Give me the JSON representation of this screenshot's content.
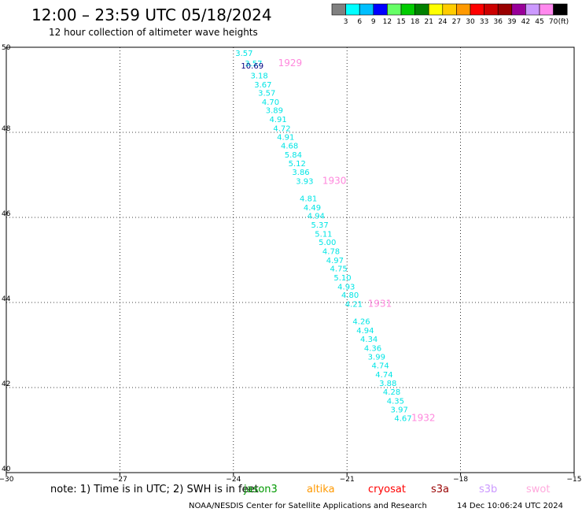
{
  "title": "12:00 – 23:59 UTC 05/18/2024",
  "subtitle": "12 hour collection of altimeter wave heights",
  "colorbar": {
    "labels": [
      "3",
      "6",
      "9",
      "12",
      "15",
      "18",
      "21",
      "24",
      "27",
      "30",
      "33",
      "36",
      "39",
      "42",
      "45",
      "70"
    ],
    "unit": "(ft)",
    "colors": [
      "#808080",
      "#00ffff",
      "#00bfff",
      "#0000ff",
      "#66ff66",
      "#00cc00",
      "#008000",
      "#ffff00",
      "#ffcc00",
      "#ff9900",
      "#ff0000",
      "#cc0000",
      "#990000",
      "#990099",
      "#cc99ff",
      "#ff88ee",
      "#000000"
    ]
  },
  "footer": {
    "note": "note:  1) Time is in UTC; 2) SWH is in feet",
    "satellites": [
      {
        "name": "jason3",
        "color": "#009900"
      },
      {
        "name": "altika",
        "color": "#ff9900"
      },
      {
        "name": "cryosat",
        "color": "#ff0000"
      },
      {
        "name": "s3a",
        "color": "#990000"
      },
      {
        "name": "s3b",
        "color": "#cc99ff"
      },
      {
        "name": "swot",
        "color": "#ffaadd"
      }
    ],
    "credit": "NOAA/NESDIS Center for Satellite Applications and Research",
    "timestamp": "14 Dec 10:06:24 UTC 2024"
  },
  "chart_data": {
    "type": "scatter",
    "xlim": [
      -30,
      -15
    ],
    "ylim": [
      40,
      50
    ],
    "xticks": [
      "−30",
      "−27",
      "−24",
      "−21",
      "−18",
      "−15"
    ],
    "xtick_values": [
      -30,
      -27,
      -24,
      -21,
      -18,
      -15
    ],
    "yticks": [
      "40",
      "42",
      "44",
      "46",
      "48",
      "50"
    ],
    "ytick_values": [
      40,
      42,
      44,
      46,
      48,
      50
    ],
    "grid": true,
    "points": [
      {
        "lon": -23.95,
        "lat": 49.8,
        "label": "3.57",
        "color": "#00e5e5"
      },
      {
        "lon": -23.7,
        "lat": 49.56,
        "label": "3.57",
        "color": "#00e5e5"
      },
      {
        "lon": -23.8,
        "lat": 49.5,
        "label": "10.69",
        "color": "#000080"
      },
      {
        "lon": -23.55,
        "lat": 49.27,
        "label": "3.18",
        "color": "#00e5e5"
      },
      {
        "lon": -23.45,
        "lat": 49.06,
        "label": "3.67",
        "color": "#00e5e5"
      },
      {
        "lon": -23.35,
        "lat": 48.86,
        "label": "3.57",
        "color": "#00e5e5"
      },
      {
        "lon": -23.25,
        "lat": 48.65,
        "label": "4.70",
        "color": "#00e5e5"
      },
      {
        "lon": -23.15,
        "lat": 48.45,
        "label": "3.89",
        "color": "#00e5e5"
      },
      {
        "lon": -23.05,
        "lat": 48.24,
        "label": "4.91",
        "color": "#00e5e5"
      },
      {
        "lon": -22.95,
        "lat": 48.03,
        "label": "4.72",
        "color": "#00e5e5"
      },
      {
        "lon": -22.85,
        "lat": 47.82,
        "label": "4.91",
        "color": "#00e5e5"
      },
      {
        "lon": -22.75,
        "lat": 47.62,
        "label": "4.68",
        "color": "#00e5e5"
      },
      {
        "lon": -22.65,
        "lat": 47.41,
        "label": "5.84",
        "color": "#00e5e5"
      },
      {
        "lon": -22.55,
        "lat": 47.2,
        "label": "5.12",
        "color": "#00e5e5"
      },
      {
        "lon": -22.45,
        "lat": 47.0,
        "label": "3.86",
        "color": "#00e5e5"
      },
      {
        "lon": -22.35,
        "lat": 46.79,
        "label": "3.93",
        "color": "#00e5e5"
      },
      {
        "lon": -22.25,
        "lat": 46.38,
        "label": "4.81",
        "color": "#00e5e5"
      },
      {
        "lon": -22.15,
        "lat": 46.17,
        "label": "4.49",
        "color": "#00e5e5"
      },
      {
        "lon": -22.05,
        "lat": 45.97,
        "label": "4.94",
        "color": "#00e5e5"
      },
      {
        "lon": -21.95,
        "lat": 45.76,
        "label": "5.37",
        "color": "#00e5e5"
      },
      {
        "lon": -21.85,
        "lat": 45.55,
        "label": "5.11",
        "color": "#00e5e5"
      },
      {
        "lon": -21.75,
        "lat": 45.35,
        "label": "5.00",
        "color": "#00e5e5"
      },
      {
        "lon": -21.65,
        "lat": 45.14,
        "label": "4.78",
        "color": "#00e5e5"
      },
      {
        "lon": -21.55,
        "lat": 44.93,
        "label": "4.97",
        "color": "#00e5e5"
      },
      {
        "lon": -21.45,
        "lat": 44.73,
        "label": "4.75",
        "color": "#00e5e5"
      },
      {
        "lon": -21.35,
        "lat": 44.52,
        "label": "5.10",
        "color": "#00e5e5"
      },
      {
        "lon": -21.25,
        "lat": 44.31,
        "label": "4.93",
        "color": "#00e5e5"
      },
      {
        "lon": -21.15,
        "lat": 44.11,
        "label": "4.80",
        "color": "#00e5e5"
      },
      {
        "lon": -21.05,
        "lat": 43.9,
        "label": "4.21",
        "color": "#00e5e5"
      },
      {
        "lon": -20.85,
        "lat": 43.49,
        "label": "4.26",
        "color": "#00e5e5"
      },
      {
        "lon": -20.75,
        "lat": 43.28,
        "label": "4.94",
        "color": "#00e5e5"
      },
      {
        "lon": -20.65,
        "lat": 43.07,
        "label": "4.34",
        "color": "#00e5e5"
      },
      {
        "lon": -20.55,
        "lat": 42.86,
        "label": "4.36",
        "color": "#00e5e5"
      },
      {
        "lon": -20.45,
        "lat": 42.66,
        "label": "3.99",
        "color": "#00e5e5"
      },
      {
        "lon": -20.35,
        "lat": 42.45,
        "label": "4.74",
        "color": "#00e5e5"
      },
      {
        "lon": -20.25,
        "lat": 42.24,
        "label": "4.74",
        "color": "#00e5e5"
      },
      {
        "lon": -20.15,
        "lat": 42.04,
        "label": "3.88",
        "color": "#00e5e5"
      },
      {
        "lon": -20.05,
        "lat": 41.83,
        "label": "4.28",
        "color": "#00e5e5"
      },
      {
        "lon": -19.95,
        "lat": 41.62,
        "label": "4.35",
        "color": "#00e5e5"
      },
      {
        "lon": -19.85,
        "lat": 41.42,
        "label": "3.97",
        "color": "#00e5e5"
      },
      {
        "lon": -19.75,
        "lat": 41.21,
        "label": "4.67",
        "color": "#00e5e5"
      }
    ],
    "time_labels": [
      {
        "lon": -22.82,
        "lat": 49.56,
        "label": "1929",
        "color": "#ff88dd"
      },
      {
        "lon": -21.65,
        "lat": 46.79,
        "label": "1930",
        "color": "#ff88dd"
      },
      {
        "lon": -20.45,
        "lat": 43.9,
        "label": "1931",
        "color": "#ff88dd"
      },
      {
        "lon": -19.3,
        "lat": 41.21,
        "label": "1932",
        "color": "#ff88dd"
      }
    ]
  }
}
